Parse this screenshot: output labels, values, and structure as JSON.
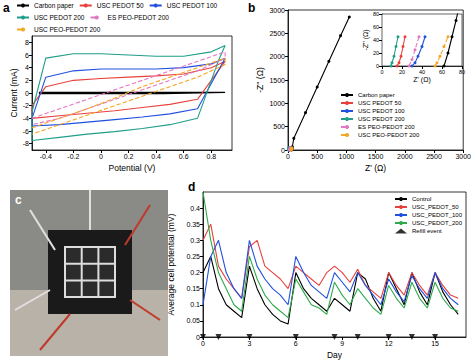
{
  "chart_data": [
    {
      "title": "a",
      "type": "line",
      "x_label": "Potential (V)",
      "y_label": "Current (mA)",
      "xlim": [
        -0.5,
        0.95
      ],
      "xticks": [
        -0.4,
        -0.2,
        0,
        0.2,
        0.4,
        0.6,
        0.8
      ],
      "ylim": [
        -9,
        9
      ],
      "yticks": [
        -8,
        -6,
        -4,
        -2,
        0,
        2,
        4,
        6,
        8
      ],
      "grid": false,
      "legend": "top",
      "series": [
        {
          "name": "Carbon paper",
          "color": "#000000",
          "line_style": "solid",
          "x": [
            -0.45,
            0,
            0.45,
            0.9,
            0.45,
            0,
            -0.45
          ],
          "values": [
            0.1,
            0.1,
            0.1,
            0.1,
            -0.1,
            -0.1,
            -0.1
          ]
        },
        {
          "name": "USC PEDOT 50",
          "color": "#e8413c",
          "line_style": "solid",
          "x": [
            -0.5,
            -0.4,
            -0.2,
            0,
            0.2,
            0.4,
            0.6,
            0.8,
            0.9,
            0.85,
            0.7,
            0.5,
            0.3,
            0.1,
            -0.1,
            -0.3,
            -0.5,
            -0.5
          ],
          "values": [
            -2,
            1,
            2,
            2.3,
            2.5,
            2.7,
            3,
            4,
            5,
            3.5,
            -1,
            -1.8,
            -2.3,
            -2.8,
            -3.2,
            -3.6,
            -4,
            -2
          ]
        },
        {
          "name": "USC PEDOT 100",
          "color": "#2050e0",
          "line_style": "solid",
          "x": [
            -0.5,
            -0.4,
            -0.2,
            0,
            0.2,
            0.4,
            0.6,
            0.8,
            0.9,
            0.85,
            0.7,
            0.5,
            0.3,
            0.1,
            -0.1,
            -0.3,
            -0.5,
            -0.5
          ],
          "values": [
            -4,
            2.5,
            3.5,
            3.8,
            3.8,
            3.8,
            4,
            4.6,
            5.5,
            3.5,
            -2.5,
            -3.3,
            -3.8,
            -4.2,
            -4.6,
            -5,
            -5.2,
            -4
          ]
        },
        {
          "name": "USC PEDOT 200",
          "color": "#1f9e89",
          "line_style": "solid",
          "x": [
            -0.5,
            -0.4,
            -0.2,
            0,
            0.2,
            0.4,
            0.6,
            0.8,
            0.9,
            0.85,
            0.7,
            0.5,
            0.3,
            0.1,
            -0.1,
            -0.3,
            -0.5,
            -0.5
          ],
          "values": [
            -3,
            5.5,
            6.2,
            6.2,
            6,
            5.8,
            5.8,
            6.5,
            7.5,
            5,
            -4,
            -5,
            -5.6,
            -6.1,
            -6.5,
            -7,
            -7.5,
            -3
          ]
        },
        {
          "name": "ES PEO-PEDOT 200",
          "color": "#e377c2",
          "line_style": "dashed",
          "x": [
            -0.5,
            -0.3,
            -0.1,
            0.1,
            0.3,
            0.5,
            0.7,
            0.9,
            0.9,
            0.7,
            0.5,
            0.3,
            0.1,
            -0.1,
            -0.3,
            -0.5
          ],
          "values": [
            -4,
            -2.5,
            -1,
            0.5,
            2,
            3.5,
            5,
            6.5,
            5.5,
            3.5,
            2,
            0.5,
            -1,
            -2.5,
            -4,
            -5
          ]
        },
        {
          "name": "USC PEO-PEDOT 200",
          "color": "#f5a623",
          "line_style": "dashed",
          "x": [
            -0.5,
            -0.3,
            -0.1,
            0.1,
            0.3,
            0.5,
            0.7,
            0.9,
            0.9,
            0.7,
            0.5,
            0.3,
            0.1,
            -0.1,
            -0.3,
            -0.5
          ],
          "values": [
            -5.5,
            -4,
            -2.5,
            -0.8,
            1,
            2.5,
            4,
            5.5,
            4.5,
            2.5,
            1,
            -0.5,
            -2,
            -3.5,
            -5,
            -6.5
          ]
        }
      ]
    },
    {
      "title": "b",
      "type": "line",
      "x_label": "Z' (Ω)",
      "y_label": "-Z'' (Ω)",
      "xlim": [
        0,
        3000
      ],
      "xticks": [
        0,
        500,
        1000,
        1500,
        2000,
        2500,
        3000
      ],
      "ylim": [
        0,
        3000
      ],
      "yticks": [
        0,
        500,
        1000,
        1500,
        2000,
        2500,
        3000
      ],
      "grid": false,
      "legend": "right",
      "marker": "circle",
      "series": [
        {
          "name": "Carbon paper",
          "color": "#000000",
          "line_style": "solid",
          "x": [
            62,
            66,
            70,
            74,
            100,
            300,
            500,
            700,
            900,
            1050
          ],
          "values": [
            0,
            20,
            45,
            70,
            250,
            800,
            1350,
            1900,
            2450,
            2850
          ]
        },
        {
          "name": "USC PEDOT 50",
          "color": "#e8413c",
          "line_style": "solid",
          "x": [
            15,
            17,
            19,
            21,
            23
          ],
          "values": [
            0,
            5,
            15,
            30,
            45
          ]
        },
        {
          "name": "USC PEDOT 100",
          "color": "#2050e0",
          "line_style": "solid",
          "x": [
            30,
            33,
            36,
            40,
            43
          ],
          "values": [
            0,
            5,
            15,
            30,
            45
          ]
        },
        {
          "name": "USC PEDOT 200",
          "color": "#1f9e89",
          "line_style": "solid",
          "x": [
            9,
            10,
            12,
            14,
            16
          ],
          "values": [
            0,
            5,
            15,
            30,
            45
          ]
        },
        {
          "name": "ES PEO-PEDOT 200",
          "color": "#e377c2",
          "line_style": "dashed",
          "x": [
            27,
            30,
            33,
            37
          ],
          "values": [
            0,
            10,
            25,
            45
          ]
        },
        {
          "name": "USC PEO-PEDOT 200",
          "color": "#f5a623",
          "line_style": "dashed",
          "x": [
            53,
            55,
            58,
            62,
            66
          ],
          "values": [
            0,
            5,
            15,
            30,
            45
          ]
        }
      ],
      "inset": {
        "x_label": "Z' (Ω)",
        "y_label": "-Z'' (Ω)",
        "xlim": [
          0,
          80
        ],
        "xticks": [
          0,
          20,
          40,
          60,
          80
        ],
        "ylim": [
          0,
          80
        ],
        "yticks": [
          0,
          20,
          40,
          60,
          80
        ]
      }
    },
    {
      "title": "c",
      "type": "photo"
    },
    {
      "title": "d",
      "type": "line",
      "x_label": "Day",
      "y_label": "Average cell potential (mV)",
      "x": [
        0,
        0.5,
        1,
        1.5,
        2,
        2.5,
        3,
        3.5,
        4,
        4.5,
        5,
        5.5,
        6,
        6.5,
        7,
        7.5,
        8,
        8.5,
        9,
        9.5,
        10,
        10.5,
        11,
        11.5,
        12,
        12.5,
        13,
        13.5,
        14,
        14.5,
        15,
        15.5,
        16,
        16.5
      ],
      "xlim": [
        0,
        17
      ],
      "xticks": [
        0,
        3,
        6,
        9,
        12,
        15
      ],
      "ylim": [
        0,
        0.45
      ],
      "yticks": [
        0,
        0.05,
        0.1,
        0.15,
        0.2,
        0.25,
        0.3,
        0.35,
        0.4
      ],
      "grid": false,
      "legend": "upper right",
      "series": [
        {
          "name": "Control",
          "color": "#000000",
          "line_style": "solid",
          "values": [
            0.2,
            0.25,
            0.15,
            0.1,
            0.08,
            0.06,
            0.22,
            0.15,
            0.1,
            0.07,
            0.05,
            0.04,
            0.2,
            0.15,
            0.12,
            0.1,
            0.08,
            0.12,
            0.1,
            0.08,
            0.2,
            0.18,
            0.12,
            0.08,
            0.2,
            0.15,
            0.1,
            0.2,
            0.14,
            0.1,
            0.2,
            0.14,
            0.1,
            0.07
          ]
        },
        {
          "name": "USC_PEDOT_50",
          "color": "#e8413c",
          "line_style": "solid",
          "values": [
            0.3,
            0.35,
            0.22,
            0.18,
            0.15,
            0.12,
            0.28,
            0.3,
            0.22,
            0.2,
            0.18,
            0.15,
            0.22,
            0.2,
            0.18,
            0.16,
            0.2,
            0.22,
            0.2,
            0.17,
            0.21,
            0.16,
            0.14,
            0.12,
            0.2,
            0.16,
            0.13,
            0.2,
            0.16,
            0.13,
            0.2,
            0.16,
            0.13,
            0.12
          ]
        },
        {
          "name": "USC_PEDOT_100",
          "color": "#2050e0",
          "line_style": "solid",
          "values": [
            0.1,
            0.25,
            0.3,
            0.2,
            0.15,
            0.12,
            0.3,
            0.22,
            0.18,
            0.15,
            0.13,
            0.1,
            0.25,
            0.2,
            0.16,
            0.14,
            0.12,
            0.2,
            0.17,
            0.14,
            0.2,
            0.16,
            0.13,
            0.1,
            0.18,
            0.14,
            0.11,
            0.19,
            0.15,
            0.12,
            0.2,
            0.15,
            0.12,
            0.1
          ]
        },
        {
          "name": "USC_PEDOT_200",
          "color": "#2eaa4a",
          "line_style": "solid",
          "values": [
            0.45,
            0.3,
            0.2,
            0.15,
            0.1,
            0.08,
            0.25,
            0.18,
            0.13,
            0.1,
            0.08,
            0.06,
            0.18,
            0.14,
            0.1,
            0.09,
            0.07,
            0.17,
            0.13,
            0.1,
            0.15,
            0.12,
            0.09,
            0.07,
            0.16,
            0.12,
            0.09,
            0.17,
            0.12,
            0.09,
            0.17,
            0.12,
            0.09,
            0.08
          ]
        },
        {
          "name": "Refill event",
          "type": "scatter",
          "marker": "triangle-down",
          "color": "#000000",
          "x": [
            0,
            1,
            3,
            6,
            8.5,
            10,
            12,
            13.5,
            15
          ],
          "values": [
            0,
            0,
            0,
            0,
            0,
            0,
            0,
            0,
            0
          ]
        }
      ]
    }
  ]
}
